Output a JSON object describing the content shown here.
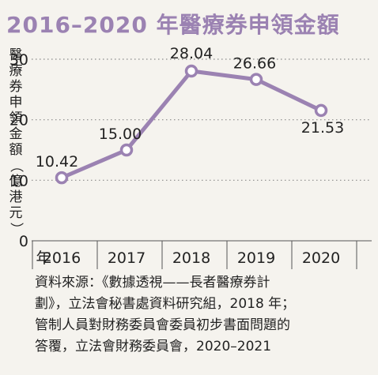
{
  "title": "2016–2020 年醫療券申領金額",
  "ylabel_chars": [
    "醫",
    "療",
    "券",
    "申",
    "領",
    "金",
    "額",
    "（",
    "億",
    "港",
    "元",
    "）"
  ],
  "x_axis_prefix": "年",
  "source_lines": [
    "資料來源：《數據透視——長者醫療券計",
    "劃》，立法會秘書處資料研究組，2018 年；",
    "管制人員對財務委員會委員初步書面問題的",
    "答覆，立法會財務委員會，2020–2021"
  ],
  "chart_data": {
    "type": "line",
    "title": "2016–2020 年醫療券申領金額",
    "xlabel": "年",
    "ylabel": "醫療券申領金額（億港元）",
    "categories": [
      "2016",
      "2017",
      "2018",
      "2019",
      "2020"
    ],
    "values": [
      10.42,
      15.0,
      28.04,
      26.66,
      21.53
    ],
    "data_labels": [
      "10.42",
      "15.00",
      "28.04",
      "26.66",
      "21.53"
    ],
    "yticks": [
      "0",
      "10",
      "20",
      "30"
    ],
    "ylim": [
      0,
      30
    ],
    "grid": "horizontal dotted",
    "line_color": "#9b82b2",
    "marker_fill": "#ffffff"
  }
}
